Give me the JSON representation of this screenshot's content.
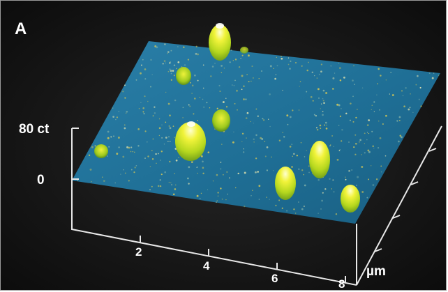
{
  "figure": {
    "panel_label": "A",
    "z_axis": {
      "top_label": "80 ct",
      "bottom_label": "0"
    },
    "x_axis": {
      "ticks": [
        "2",
        "4",
        "6",
        "8"
      ],
      "unit": "µm"
    },
    "colors": {
      "background": "#121212",
      "surface": "#1f6f96",
      "peak_base": "#7fb317",
      "peak_top": "#ffffa0",
      "axis": "#e8e8e8"
    },
    "peak_count": 9
  }
}
